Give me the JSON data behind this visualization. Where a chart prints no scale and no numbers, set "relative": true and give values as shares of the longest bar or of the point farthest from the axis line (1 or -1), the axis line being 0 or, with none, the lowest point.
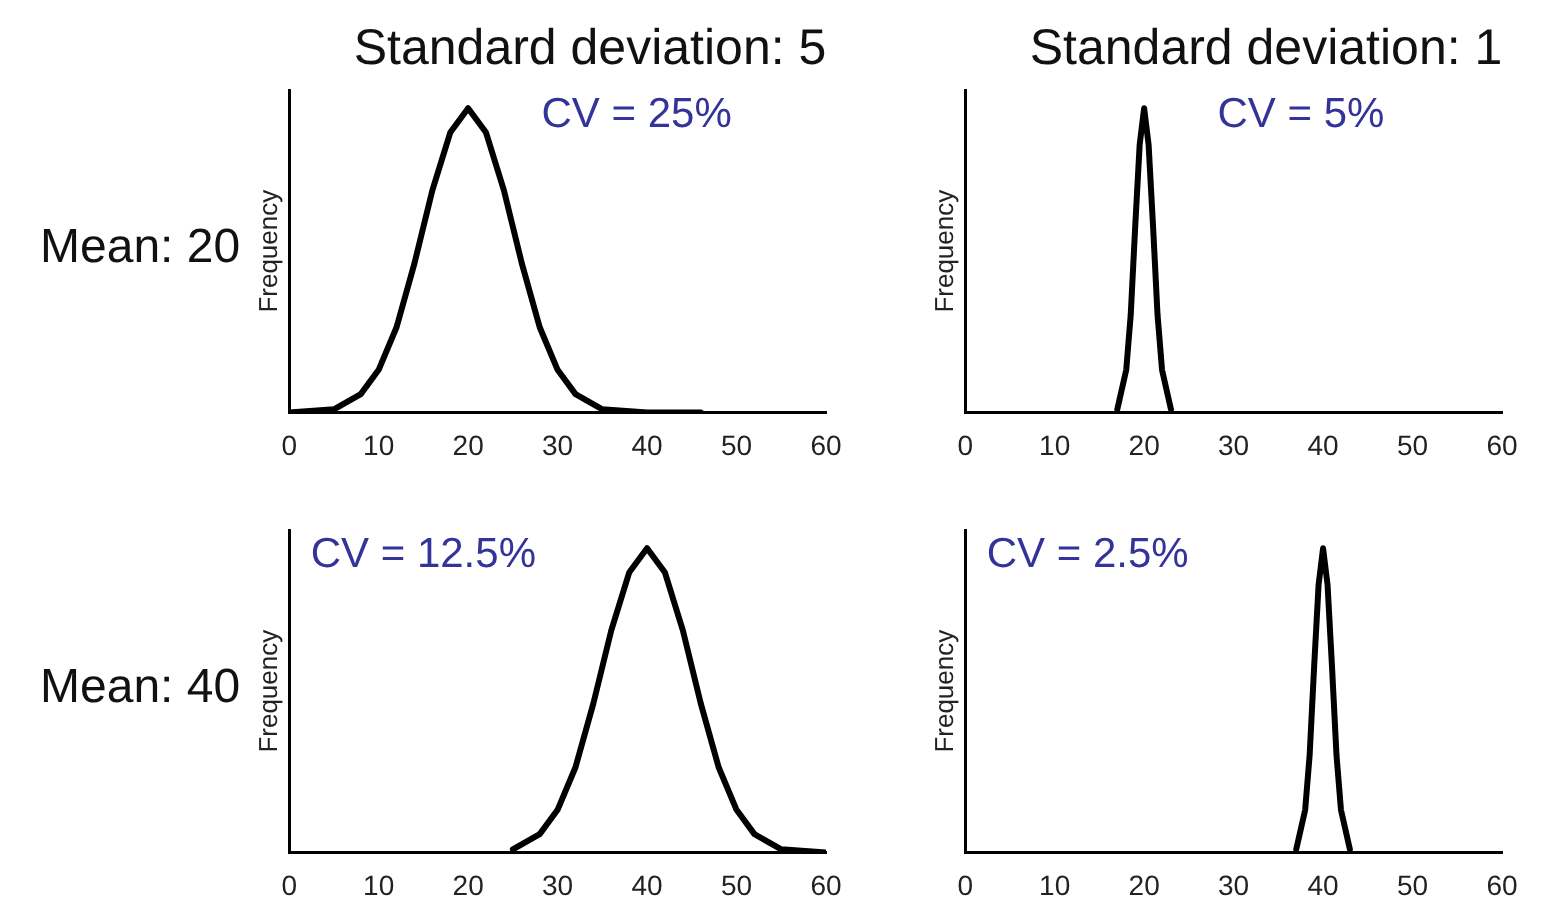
{
  "chart_data": [
    {
      "type": "line",
      "title": "Standard deviation: 5",
      "ylabel": "Frequency",
      "annotations": [
        "Mean: 20",
        "CV = 25%"
      ],
      "relative": true,
      "xlim": [
        0,
        60
      ],
      "xticks": [
        0,
        10,
        20,
        30,
        40,
        50,
        60
      ],
      "grid": false,
      "legend": false,
      "marker": "none",
      "line_style": "solid",
      "series": [
        {
          "color": "#000000",
          "x": [
            0,
            5,
            8,
            10,
            12,
            14,
            16,
            18,
            20,
            22,
            24,
            26,
            28,
            30,
            32,
            35,
            40,
            46
          ],
          "values": [
            0,
            0.01,
            0.06,
            0.14,
            0.28,
            0.49,
            0.73,
            0.92,
            1,
            0.92,
            0.73,
            0.49,
            0.28,
            0.14,
            0.06,
            0.01,
            0,
            0
          ]
        }
      ]
    },
    {
      "type": "line",
      "title": "Standard deviation: 1",
      "ylabel": "Frequency",
      "annotations": [
        "CV = 5%"
      ],
      "relative": true,
      "xlim": [
        0,
        60
      ],
      "xticks": [
        0,
        10,
        20,
        30,
        40,
        50,
        60
      ],
      "grid": false,
      "legend": false,
      "marker": "none",
      "line_style": "solid",
      "series": [
        {
          "color": "#000000",
          "x": [
            17,
            18,
            18.5,
            19,
            19.5,
            20,
            20.5,
            21,
            21.5,
            22,
            23
          ],
          "values": [
            0.01,
            0.14,
            0.32,
            0.61,
            0.88,
            1,
            0.88,
            0.61,
            0.32,
            0.14,
            0.01
          ]
        }
      ]
    },
    {
      "type": "line",
      "ylabel": "Frequency",
      "annotations": [
        "Mean: 40",
        "CV = 12.5%"
      ],
      "relative": true,
      "xlim": [
        0,
        60
      ],
      "xticks": [
        0,
        10,
        20,
        30,
        40,
        50,
        60
      ],
      "grid": false,
      "legend": false,
      "marker": "none",
      "line_style": "solid",
      "series": [
        {
          "color": "#000000",
          "x": [
            25,
            28,
            30,
            32,
            34,
            36,
            38,
            40,
            42,
            44,
            46,
            48,
            50,
            52,
            55,
            60
          ],
          "values": [
            0.01,
            0.06,
            0.14,
            0.28,
            0.49,
            0.73,
            0.92,
            1,
            0.92,
            0.73,
            0.49,
            0.28,
            0.14,
            0.06,
            0.01,
            0
          ]
        }
      ]
    },
    {
      "type": "line",
      "ylabel": "Frequency",
      "annotations": [
        "CV = 2.5%"
      ],
      "relative": true,
      "xlim": [
        0,
        60
      ],
      "xticks": [
        0,
        10,
        20,
        30,
        40,
        50,
        60
      ],
      "grid": false,
      "legend": false,
      "marker": "none",
      "line_style": "solid",
      "series": [
        {
          "color": "#000000",
          "x": [
            37,
            38,
            38.5,
            39,
            39.5,
            40,
            40.5,
            41,
            41.5,
            42,
            43
          ],
          "values": [
            0.01,
            0.14,
            0.32,
            0.61,
            0.88,
            1,
            0.88,
            0.61,
            0.32,
            0.14,
            0.01
          ]
        }
      ]
    }
  ]
}
